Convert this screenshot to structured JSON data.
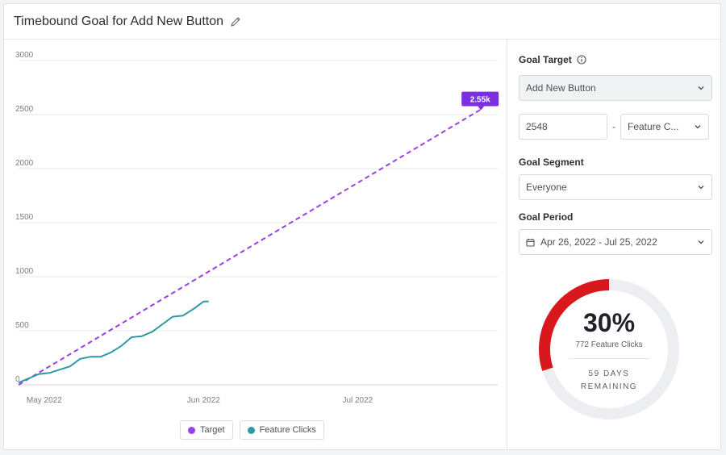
{
  "header": {
    "title": "Timebound Goal for Add New Button"
  },
  "chart_data": {
    "type": "line",
    "ylim": [
      0,
      3000
    ],
    "yticks": [
      0,
      500,
      1000,
      1500,
      2000,
      2500,
      3000
    ],
    "xlim": [
      "2022-04-26",
      "2022-07-25"
    ],
    "xticks": [
      {
        "date": "2022-05-01",
        "label": "May 2022"
      },
      {
        "date": "2022-06-01",
        "label": "Jun 2022"
      },
      {
        "date": "2022-07-01",
        "label": "Jul 2022"
      }
    ],
    "series": [
      {
        "name": "Target",
        "style": "dashed",
        "color": "#9b3fe6",
        "points": [
          [
            "2022-04-26",
            0
          ],
          [
            "2022-07-25",
            2548
          ]
        ]
      },
      {
        "name": "Feature Clicks",
        "style": "solid",
        "color": "#2b9aa5",
        "points": [
          [
            "2022-04-26",
            20
          ],
          [
            "2022-04-28",
            60
          ],
          [
            "2022-04-30",
            100
          ],
          [
            "2022-05-02",
            110
          ],
          [
            "2022-05-04",
            140
          ],
          [
            "2022-05-06",
            170
          ],
          [
            "2022-05-08",
            240
          ],
          [
            "2022-05-10",
            260
          ],
          [
            "2022-05-12",
            260
          ],
          [
            "2022-05-14",
            300
          ],
          [
            "2022-05-16",
            360
          ],
          [
            "2022-05-18",
            440
          ],
          [
            "2022-05-20",
            450
          ],
          [
            "2022-05-22",
            490
          ],
          [
            "2022-05-24",
            560
          ],
          [
            "2022-05-26",
            630
          ],
          [
            "2022-05-28",
            640
          ],
          [
            "2022-05-30",
            700
          ],
          [
            "2022-06-01",
            770
          ],
          [
            "2022-06-02",
            772
          ]
        ]
      }
    ],
    "annotation": {
      "label": "2.55k",
      "date": "2022-07-25",
      "value": 2548,
      "color": "#7b2fe0"
    }
  },
  "legend": {
    "items": [
      {
        "label": "Target",
        "color": "#9b3fe6"
      },
      {
        "label": "Feature Clicks",
        "color": "#2b9aa5"
      }
    ]
  },
  "panel": {
    "goal_target": {
      "label": "Goal Target",
      "event": "Add New Button",
      "value": "2548",
      "separator": "-",
      "metric": "Feature C..."
    },
    "goal_segment": {
      "label": "Goal Segment",
      "value": "Everyone"
    },
    "goal_period": {
      "label": "Goal Period",
      "value": "Apr 26, 2022 - Jul 25, 2022"
    },
    "progress": {
      "fraction": 0.3,
      "percent_label": "30%",
      "count_label": "772 Feature Clicks",
      "days_line1": "59 DAYS",
      "days_line2": "REMAINING",
      "fill_color": "#d9181e",
      "track_color": "#eceef1"
    }
  }
}
